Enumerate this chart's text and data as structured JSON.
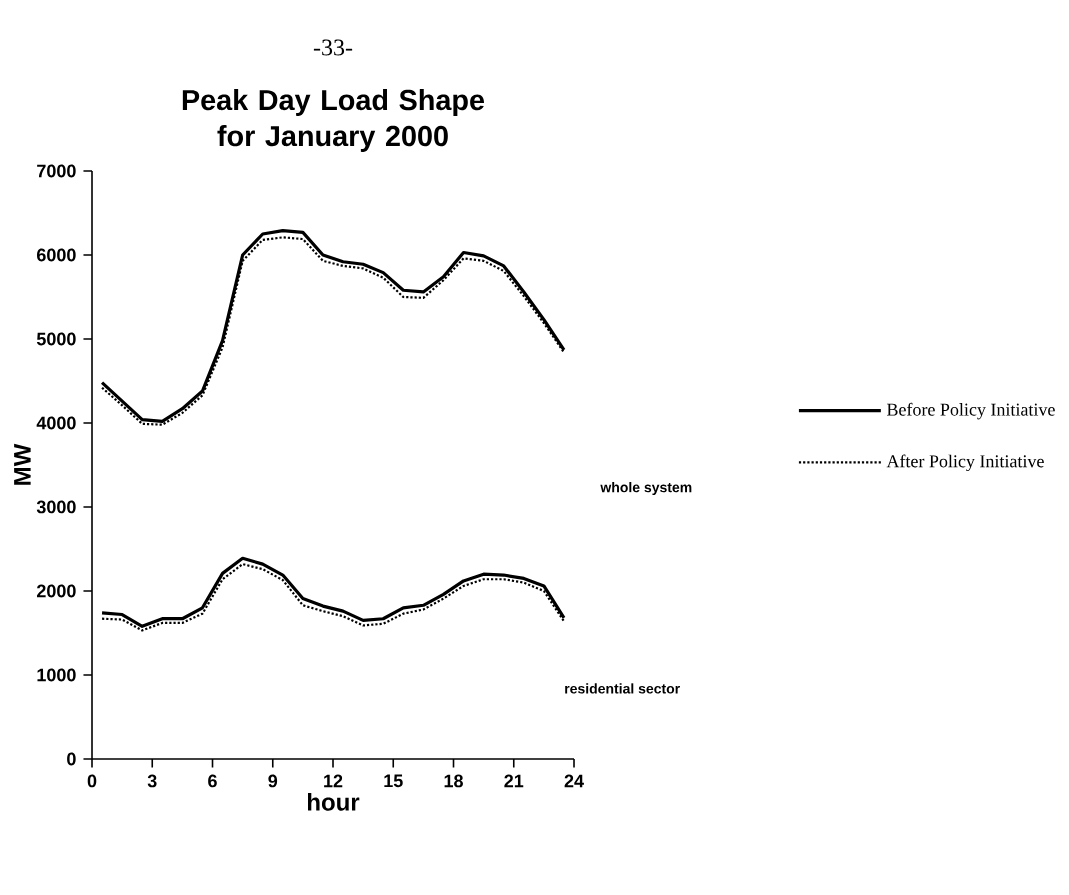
{
  "chart_data": {
    "type": "line",
    "title": "Peak Day Load Shape for January  2000",
    "xlabel": "hour",
    "ylabel": "MW",
    "annotations": [
      "-33-",
      "whole system",
      "residential sector"
    ],
    "xlim": [
      0,
      24
    ],
    "xticks": [
      0,
      3,
      6,
      9,
      12,
      15,
      18,
      21,
      24
    ],
    "ylim": [
      0,
      7000
    ],
    "yticks": [
      0,
      1000,
      2000,
      3000,
      4000,
      5000,
      6000,
      7000
    ],
    "grid": false,
    "legend": "right",
    "marker": "none",
    "x": [
      0.5,
      1.5,
      2.5,
      3.5,
      4.5,
      5.5,
      6.5,
      7.5,
      8.5,
      9.5,
      10.5,
      11.5,
      12.5,
      13.5,
      14.5,
      15.5,
      16.5,
      17.5,
      18.5,
      19.5,
      20.5,
      21.5,
      22.5,
      23.5
    ],
    "series": [
      {
        "name": "Before Policy Initiative",
        "color": "#000000",
        "line_style": "solid",
        "values": [
          4480,
          4260,
          4040,
          4020,
          4170,
          4380,
          4980,
          6000,
          6250,
          6290,
          6270,
          6000,
          5920,
          5890,
          5790,
          5580,
          5560,
          5740,
          6030,
          5990,
          5870,
          5560,
          5230,
          4870
        ]
      },
      {
        "name": "After Policy Initiative",
        "color": "#000000",
        "line_style": "dotted",
        "values": [
          4420,
          4210,
          3990,
          3980,
          4120,
          4330,
          4900,
          5930,
          6180,
          6210,
          6190,
          5930,
          5870,
          5840,
          5730,
          5500,
          5490,
          5700,
          5960,
          5930,
          5810,
          5510,
          5190,
          4840
        ]
      },
      {
        "color": "#000000",
        "line_style": "solid",
        "values": [
          1740,
          1720,
          1580,
          1670,
          1670,
          1800,
          2210,
          2390,
          2320,
          2190,
          1910,
          1820,
          1760,
          1650,
          1670,
          1800,
          1830,
          1960,
          2120,
          2200,
          2190,
          2150,
          2060,
          1680
        ]
      },
      {
        "color": "#000000",
        "line_style": "dotted",
        "values": [
          1670,
          1660,
          1530,
          1620,
          1620,
          1730,
          2140,
          2320,
          2260,
          2130,
          1830,
          1760,
          1700,
          1590,
          1610,
          1730,
          1780,
          1910,
          2060,
          2140,
          2140,
          2100,
          2000,
          1640
        ]
      }
    ]
  }
}
